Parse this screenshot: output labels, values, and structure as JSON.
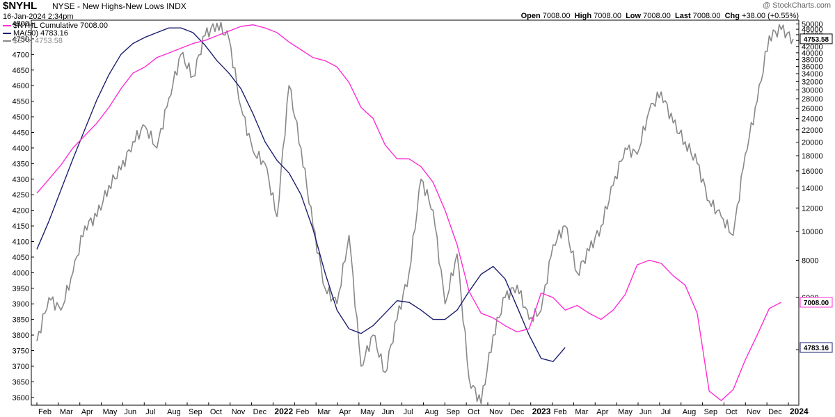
{
  "header": {
    "ticker": "$NYHL",
    "description": "NYSE - New Highs-New Lows",
    "exchange": "INDX",
    "datestamp": "16-Jan-2024 2:34pm",
    "watermark": "@ StockCharts.com",
    "ohlc": {
      "open_label": "Open",
      "open": "7008.00",
      "high_label": "High",
      "high": "7008.00",
      "low_label": "Low",
      "low": "7008.00",
      "last_label": "Last",
      "last": "7008.00",
      "chg_label": "Chg",
      "chg": "+38.00 (+0.55%)"
    }
  },
  "legend": [
    {
      "label": "$NYHL Cumulative 7008.00",
      "color": "#ff2dd4"
    },
    {
      "label": "MA(50) 4783.16",
      "color": "#1c1e6e"
    },
    {
      "label": "$SPX 4753.58",
      "color": "#888888"
    }
  ],
  "chart_data": {
    "type": "line",
    "x_labels": [
      "Feb",
      "Mar",
      "Apr",
      "May",
      "Jun",
      "Jul",
      "Aug",
      "Sep",
      "Oct",
      "Nov",
      "Dec",
      "2022",
      "Feb",
      "Mar",
      "Apr",
      "May",
      "Jun",
      "Jul",
      "Aug",
      "Sep",
      "Oct",
      "Nov",
      "Dec",
      "2023",
      "Feb",
      "Mar",
      "Apr",
      "May",
      "Jun",
      "Jul",
      "Aug",
      "Sep",
      "Oct",
      "Nov",
      "Dec",
      "2024"
    ],
    "bold_x_labels": [
      "2022",
      "2023",
      "2024"
    ],
    "left_axis": {
      "series": "$SPX",
      "range": [
        3575,
        4810
      ],
      "ticks": [
        3600,
        3650,
        3700,
        3750,
        3800,
        3850,
        3900,
        3950,
        4000,
        4050,
        4100,
        4150,
        4200,
        4250,
        4300,
        4350,
        4400,
        4450,
        4500,
        4550,
        4600,
        4650,
        4700,
        4750,
        4800
      ]
    },
    "right_axis": {
      "series": "$NYHL Cumulative",
      "scale": "log",
      "range": [
        2600,
        51500
      ],
      "ticks": [
        4000,
        6000,
        8000,
        10000,
        12000,
        14000,
        16000,
        18000,
        20000,
        22000,
        24000,
        26000,
        28000,
        30000,
        32000,
        34000,
        36000,
        38000,
        40000,
        42000,
        44000,
        46000,
        48000,
        50000
      ],
      "value_tags": [
        {
          "label": "4753.58",
          "series": "$SPX"
        },
        {
          "label": "7008.00",
          "series": "$NYHL Cumulative"
        },
        {
          "label": "4783.16",
          "series": "MA(50)"
        }
      ]
    },
    "series": [
      {
        "name": "$NYHL Cumulative",
        "axis": "left_equiv",
        "color": "#ff2dd4",
        "points": [
          [
            0,
            4255
          ],
          [
            1,
            4300
          ],
          [
            2,
            4345
          ],
          [
            3,
            4400
          ],
          [
            4,
            4440
          ],
          [
            5,
            4480
          ],
          [
            6,
            4530
          ],
          [
            7,
            4590
          ],
          [
            8,
            4640
          ],
          [
            9,
            4660
          ],
          [
            10,
            4690
          ],
          [
            11,
            4705
          ],
          [
            12,
            4720
          ],
          [
            13,
            4735
          ],
          [
            14,
            4745
          ],
          [
            15,
            4760
          ],
          [
            16,
            4775
          ],
          [
            17,
            4790
          ],
          [
            18,
            4795
          ],
          [
            19,
            4785
          ],
          [
            20,
            4770
          ],
          [
            21,
            4740
          ],
          [
            22,
            4715
          ],
          [
            23,
            4690
          ],
          [
            24,
            4680
          ],
          [
            25,
            4660
          ],
          [
            26,
            4610
          ],
          [
            27,
            4530
          ],
          [
            28,
            4495
          ],
          [
            29,
            4410
          ],
          [
            30,
            4365
          ],
          [
            31,
            4365
          ],
          [
            32,
            4340
          ],
          [
            33,
            4290
          ],
          [
            34,
            4200
          ],
          [
            35,
            4090
          ],
          [
            36,
            3940
          ],
          [
            37,
            3870
          ],
          [
            38,
            3855
          ],
          [
            39,
            3830
          ],
          [
            40,
            3810
          ],
          [
            41,
            3820
          ],
          [
            42,
            3935
          ],
          [
            43,
            3920
          ],
          [
            44,
            3880
          ],
          [
            45,
            3895
          ],
          [
            46,
            3870
          ],
          [
            47,
            3850
          ],
          [
            48,
            3880
          ],
          [
            49,
            3930
          ],
          [
            50,
            4025
          ],
          [
            51,
            4040
          ],
          [
            52,
            4030
          ],
          [
            53,
            3990
          ],
          [
            54,
            3960
          ],
          [
            55,
            3870
          ],
          [
            56,
            3620
          ],
          [
            57,
            3590
          ],
          [
            58,
            3625
          ],
          [
            59,
            3720
          ],
          [
            60,
            3800
          ],
          [
            61,
            3885
          ],
          [
            62,
            3905
          ]
        ]
      },
      {
        "name": "MA(50)",
        "axis": "left_equiv",
        "color": "#1c1e6e",
        "points": [
          [
            0,
            4075
          ],
          [
            1,
            4165
          ],
          [
            2,
            4265
          ],
          [
            3,
            4365
          ],
          [
            4,
            4460
          ],
          [
            5,
            4555
          ],
          [
            6,
            4635
          ],
          [
            7,
            4700
          ],
          [
            8,
            4735
          ],
          [
            9,
            4755
          ],
          [
            10,
            4770
          ],
          [
            11,
            4785
          ],
          [
            12,
            4785
          ],
          [
            13,
            4770
          ],
          [
            14,
            4730
          ],
          [
            15,
            4680
          ],
          [
            16,
            4640
          ],
          [
            17,
            4590
          ],
          [
            18,
            4510
          ],
          [
            19,
            4420
          ],
          [
            20,
            4360
          ],
          [
            21,
            4320
          ],
          [
            22,
            4250
          ],
          [
            23,
            4140
          ],
          [
            24,
            4000
          ],
          [
            25,
            3880
          ],
          [
            26,
            3820
          ],
          [
            27,
            3805
          ],
          [
            28,
            3830
          ],
          [
            29,
            3870
          ],
          [
            30,
            3910
          ],
          [
            31,
            3905
          ],
          [
            32,
            3880
          ],
          [
            33,
            3850
          ],
          [
            34,
            3850
          ],
          [
            35,
            3880
          ],
          [
            36,
            3940
          ],
          [
            37,
            3995
          ],
          [
            38,
            4020
          ],
          [
            39,
            3980
          ],
          [
            40,
            3890
          ],
          [
            41,
            3800
          ],
          [
            42,
            3725
          ],
          [
            43,
            3715
          ],
          [
            44,
            3760
          ]
        ]
      },
      {
        "name": "$SPX",
        "axis": "left",
        "color": "#888888",
        "points": [
          [
            0,
            3780
          ],
          [
            1,
            3920
          ],
          [
            2,
            3880
          ],
          [
            3,
            4000
          ],
          [
            4,
            4150
          ],
          [
            5,
            4180
          ],
          [
            6,
            4280
          ],
          [
            7,
            4330
          ],
          [
            8,
            4420
          ],
          [
            9,
            4470
          ],
          [
            10,
            4400
          ],
          [
            11,
            4560
          ],
          [
            12,
            4700
          ],
          [
            13,
            4630
          ],
          [
            14,
            4760
          ],
          [
            15,
            4800
          ],
          [
            16,
            4750
          ],
          [
            17,
            4530
          ],
          [
            18,
            4390
          ],
          [
            19,
            4350
          ],
          [
            20,
            4180
          ],
          [
            21,
            4600
          ],
          [
            22,
            4400
          ],
          [
            23,
            4150
          ],
          [
            24,
            3950
          ],
          [
            25,
            3900
          ],
          [
            26,
            4120
          ],
          [
            27,
            3700
          ],
          [
            28,
            3800
          ],
          [
            29,
            3680
          ],
          [
            30,
            3850
          ],
          [
            31,
            4000
          ],
          [
            32,
            4300
          ],
          [
            33,
            4200
          ],
          [
            34,
            3900
          ],
          [
            35,
            4060
          ],
          [
            36,
            3660
          ],
          [
            37,
            3580
          ],
          [
            38,
            3800
          ],
          [
            39,
            3920
          ],
          [
            40,
            3960
          ],
          [
            41,
            3850
          ],
          [
            42,
            3880
          ],
          [
            43,
            4090
          ],
          [
            44,
            4150
          ],
          [
            45,
            4000
          ],
          [
            46,
            4070
          ],
          [
            47,
            4150
          ],
          [
            48,
            4280
          ],
          [
            49,
            4400
          ],
          [
            50,
            4380
          ],
          [
            51,
            4520
          ],
          [
            52,
            4580
          ],
          [
            53,
            4480
          ],
          [
            54,
            4420
          ],
          [
            55,
            4350
          ],
          [
            56,
            4230
          ],
          [
            57,
            4180
          ],
          [
            58,
            4120
          ],
          [
            59,
            4380
          ],
          [
            60,
            4550
          ],
          [
            61,
            4760
          ],
          [
            62,
            4780
          ],
          [
            63,
            4750
          ]
        ]
      }
    ],
    "grid": "off",
    "legend_position": "top-left"
  }
}
